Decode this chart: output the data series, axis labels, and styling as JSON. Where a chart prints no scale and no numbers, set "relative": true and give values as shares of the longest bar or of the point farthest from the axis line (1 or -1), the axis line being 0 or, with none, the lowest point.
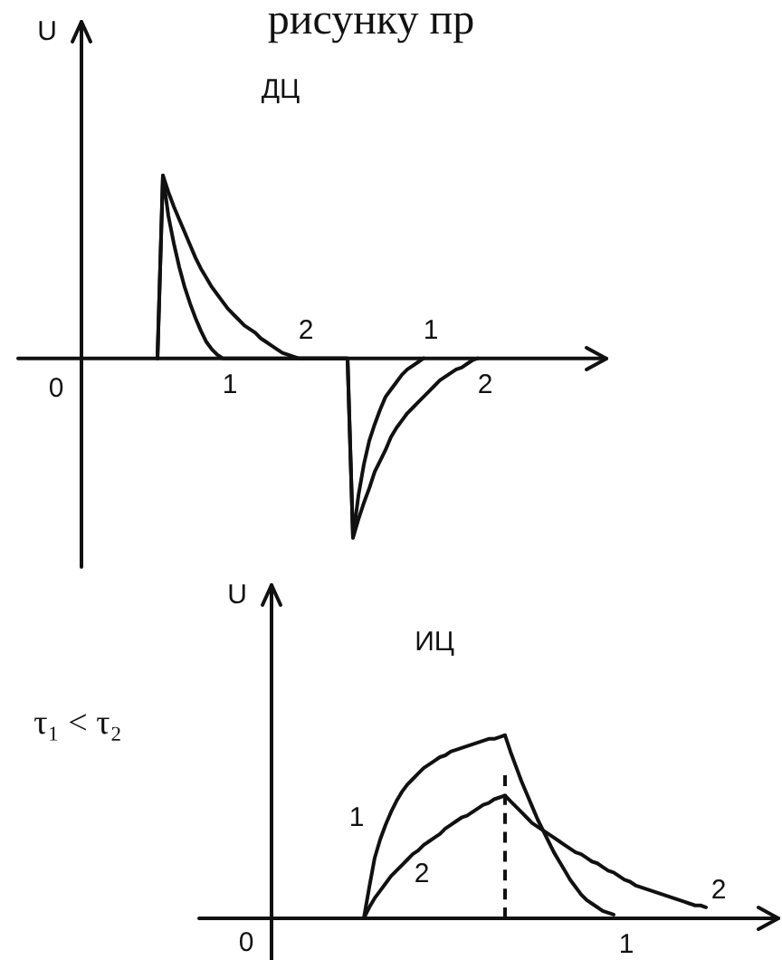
{
  "chart_data": [
    {
      "type": "line",
      "title": "ДЦ",
      "ylabel": "U",
      "relative": true,
      "categories": [
        null,
        null,
        null,
        null,
        null,
        null,
        null,
        null,
        null,
        null,
        null,
        null,
        null,
        null,
        null,
        null,
        null,
        null,
        null,
        null,
        null,
        null,
        null,
        null,
        null,
        null,
        null,
        null,
        null,
        null,
        null,
        null,
        null,
        null,
        null,
        null,
        null,
        null,
        null,
        null,
        null,
        null,
        null,
        null,
        null,
        null,
        null,
        null,
        null,
        null,
        null,
        null,
        null,
        null,
        null,
        null,
        null,
        null,
        null,
        null,
        null,
        null,
        null,
        null,
        null,
        null,
        null,
        null,
        null,
        null,
        null,
        null,
        null,
        null,
        null,
        null,
        null,
        null,
        null,
        null,
        null,
        null,
        null,
        null,
        null,
        null,
        null,
        null,
        null,
        null,
        null,
        null,
        null,
        null,
        null,
        null
      ],
      "series": [
        {
          "name": "1",
          "color": "#111111",
          "values": [
            null,
            null,
            null,
            null,
            null,
            null,
            null,
            null,
            null,
            null,
            null,
            null,
            null,
            null,
            0,
            1.0,
            0.78,
            0.63,
            0.5,
            0.39,
            0.3,
            0.22,
            0.15,
            0.09,
            0.05,
            0.02,
            0,
            0,
            0,
            0,
            0,
            0,
            0,
            0,
            0,
            0,
            0,
            0,
            0,
            0,
            0,
            0,
            0,
            0,
            0,
            0,
            0,
            0,
            0,
            0,
            -0.98,
            -0.75,
            -0.58,
            -0.45,
            -0.36,
            -0.28,
            -0.21,
            -0.17,
            -0.13,
            -0.09,
            -0.06,
            -0.04,
            -0.02,
            0,
            null,
            null,
            null,
            null,
            null,
            null,
            null,
            null,
            null,
            null,
            null,
            null,
            null,
            null,
            null,
            null,
            null,
            null,
            null,
            null,
            null,
            null,
            null,
            null,
            null,
            null,
            null,
            null,
            null,
            null,
            null,
            null
          ]
        },
        {
          "name": "2",
          "color": "#111111",
          "values": [
            null,
            null,
            null,
            null,
            null,
            null,
            null,
            null,
            null,
            null,
            null,
            null,
            null,
            null,
            0,
            1.0,
            0.91,
            0.83,
            0.76,
            0.69,
            0.62,
            0.55,
            0.49,
            0.44,
            0.39,
            0.35,
            0.31,
            0.27,
            0.24,
            0.21,
            0.18,
            0.16,
            0.14,
            0.11,
            0.09,
            0.07,
            0.05,
            0.03,
            0.02,
            0.01,
            0,
            0,
            0,
            0,
            0,
            0,
            0,
            0,
            0,
            0,
            -0.98,
            -0.88,
            -0.79,
            -0.71,
            -0.62,
            -0.56,
            -0.5,
            -0.43,
            -0.38,
            -0.34,
            -0.3,
            -0.27,
            -0.24,
            -0.21,
            -0.18,
            -0.15,
            -0.12,
            -0.1,
            -0.08,
            -0.06,
            -0.05,
            -0.03,
            -0.01,
            0,
            null,
            null,
            null,
            null,
            null,
            null,
            null,
            null,
            null,
            null,
            null,
            null,
            null,
            null,
            null,
            null,
            null,
            null,
            null,
            null,
            null,
            null
          ]
        }
      ],
      "annotations": [
        "рисунку пр",
        "0"
      ]
    },
    {
      "type": "line",
      "title": "ИЦ",
      "ylabel": "U",
      "relative": true,
      "categories": [
        null,
        null,
        null,
        null,
        null,
        null,
        null,
        null,
        null,
        null,
        null,
        null,
        null,
        null,
        null,
        null,
        null,
        null,
        null,
        null,
        null,
        null,
        null,
        null,
        null,
        null,
        null,
        null,
        null,
        null,
        null,
        null,
        null,
        null,
        null,
        null,
        null,
        null,
        null,
        null,
        null,
        null,
        null,
        null,
        null,
        null,
        null,
        null,
        null,
        null,
        null,
        null,
        null,
        null,
        null,
        null,
        null,
        null,
        null,
        null,
        null,
        null,
        null,
        null,
        null,
        null,
        null,
        null,
        null,
        null,
        null,
        null,
        null,
        null,
        null,
        null,
        null,
        null,
        null,
        null,
        null,
        null,
        null,
        null,
        null,
        null,
        null,
        null,
        null,
        null,
        null,
        null
      ],
      "series": [
        {
          "name": "1",
          "color": "#111111",
          "values": [
            null,
            null,
            null,
            null,
            null,
            null,
            null,
            null,
            null,
            null,
            null,
            null,
            null,
            null,
            null,
            null,
            null,
            0,
            0.17,
            0.33,
            0.43,
            0.51,
            0.58,
            0.64,
            0.69,
            0.73,
            0.76,
            0.79,
            0.82,
            0.84,
            0.86,
            0.88,
            0.89,
            0.91,
            0.92,
            0.93,
            0.94,
            0.95,
            0.96,
            0.97,
            0.98,
            0.98,
            0.99,
            1.0,
            0.91,
            0.83,
            0.75,
            0.68,
            0.61,
            0.54,
            0.48,
            0.42,
            0.36,
            0.31,
            0.26,
            0.21,
            0.17,
            0.13,
            0.1,
            0.08,
            0.06,
            0.04,
            0.03,
            0.02,
            null,
            null,
            null,
            null,
            null,
            null,
            null,
            null,
            null,
            null,
            null,
            null,
            null,
            null,
            null,
            null,
            null,
            null,
            null,
            null,
            null,
            null,
            null,
            null,
            null,
            null,
            null,
            null
          ]
        },
        {
          "name": "2",
          "color": "#111111",
          "values": [
            null,
            null,
            null,
            null,
            null,
            null,
            null,
            null,
            null,
            null,
            null,
            null,
            null,
            null,
            null,
            null,
            null,
            0,
            0.06,
            0.11,
            0.15,
            0.19,
            0.23,
            0.26,
            0.29,
            0.32,
            0.35,
            0.37,
            0.4,
            0.42,
            0.44,
            0.46,
            0.49,
            0.51,
            0.53,
            0.55,
            0.56,
            0.58,
            0.6,
            0.62,
            0.63,
            0.65,
            0.66,
            0.67,
            0.64,
            0.61,
            0.58,
            0.55,
            0.52,
            0.5,
            0.48,
            0.46,
            0.44,
            0.42,
            0.4,
            0.38,
            0.36,
            0.35,
            0.33,
            0.31,
            0.3,
            0.28,
            0.26,
            0.25,
            0.23,
            0.21,
            0.2,
            0.18,
            0.17,
            0.16,
            0.15,
            0.14,
            0.13,
            0.12,
            0.11,
            0.1,
            0.09,
            0.08,
            0.07,
            0.07,
            0.06,
            null,
            null,
            null,
            null,
            null,
            null,
            null,
            null,
            null,
            null,
            null
          ]
        }
      ],
      "annotations": [
        "τ₁ < τ₂",
        "0"
      ]
    }
  ]
}
